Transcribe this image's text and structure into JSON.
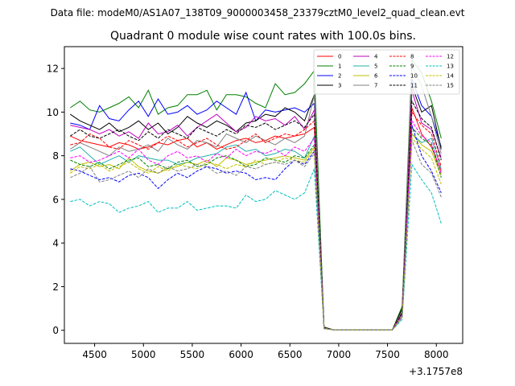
{
  "chart_data": {
    "type": "line",
    "suptitle": "Data file: modeM0/AS1A07_138T09_9000003458_23379cztM0_level2_quad_clean.evt",
    "title": "Quadrant 0 module wise count rates with 100.0s bins.",
    "xlabel": "",
    "ylabel": "",
    "offset_text": "+3.1757e8",
    "xlim": [
      4190,
      8270
    ],
    "ylim": [
      -0.6,
      13.0
    ],
    "xticks": [
      4500,
      5000,
      5500,
      6000,
      6500,
      7000,
      7500,
      8000
    ],
    "yticks": [
      0,
      2,
      4,
      6,
      8,
      10,
      12
    ],
    "grid": false,
    "legend_placement": "upper-right",
    "x": [
      4250,
      4350,
      4450,
      4550,
      4650,
      4750,
      4850,
      4950,
      5050,
      5150,
      5250,
      5350,
      5450,
      5550,
      5650,
      5750,
      5850,
      5950,
      6050,
      6150,
      6250,
      6350,
      6450,
      6550,
      6650,
      6750,
      6850,
      6950,
      7050,
      7150,
      7250,
      7350,
      7450,
      7550,
      7650,
      7750,
      7850,
      7950,
      8050
    ],
    "series": [
      {
        "name": "0",
        "color": "#ff0000",
        "dash": "solid",
        "values": [
          8.9,
          8.7,
          8.6,
          8.5,
          8.4,
          8.6,
          8.5,
          8.3,
          8.4,
          8.6,
          8.5,
          8.7,
          8.8,
          8.4,
          8.6,
          8.3,
          8.5,
          8.7,
          8.8,
          8.6,
          8.7,
          8.9,
          8.8,
          8.9,
          9.0,
          9.3,
          0.1,
          0.02,
          0.02,
          0.02,
          0.02,
          0.02,
          0.02,
          0.02,
          0.9,
          10.2,
          9.0,
          8.4,
          7.3
        ]
      },
      {
        "name": "1",
        "color": "#008000",
        "dash": "solid",
        "values": [
          10.2,
          10.5,
          10.1,
          10.0,
          10.2,
          10.4,
          10.7,
          10.2,
          11.0,
          9.9,
          10.2,
          10.3,
          10.8,
          10.8,
          11.0,
          10.1,
          10.8,
          10.8,
          10.7,
          10.4,
          10.2,
          11.3,
          10.8,
          10.9,
          11.3,
          11.9,
          0.12,
          0.02,
          0.02,
          0.02,
          0.02,
          0.02,
          0.02,
          0.02,
          1.1,
          12.4,
          11.8,
          10.5,
          8.8
        ]
      },
      {
        "name": "2",
        "color": "#0000ff",
        "dash": "solid",
        "values": [
          9.5,
          9.4,
          9.2,
          10.3,
          9.7,
          9.6,
          10.1,
          10.5,
          9.8,
          10.6,
          9.9,
          10.0,
          10.3,
          9.9,
          10.1,
          10.5,
          10.2,
          9.9,
          10.9,
          9.6,
          10.1,
          10.0,
          10.1,
          10.2,
          10.0,
          10.4,
          0.1,
          0.02,
          0.02,
          0.02,
          0.02,
          0.02,
          0.02,
          0.02,
          0.8,
          11.5,
          10.3,
          9.8,
          8.4
        ]
      },
      {
        "name": "3",
        "color": "#000000",
        "dash": "solid",
        "values": [
          9.9,
          9.6,
          9.4,
          9.2,
          9.5,
          9.1,
          9.3,
          9.6,
          9.2,
          9.5,
          9.0,
          9.3,
          9.8,
          9.5,
          9.3,
          9.6,
          9.4,
          9.1,
          9.5,
          9.6,
          9.9,
          9.8,
          10.2,
          10.0,
          9.6,
          10.8,
          0.15,
          0.02,
          0.02,
          0.02,
          0.02,
          0.02,
          0.02,
          0.02,
          1.0,
          11.2,
          10.0,
          10.3,
          8.3
        ]
      },
      {
        "name": "4",
        "color": "#bf00bf",
        "dash": "solid",
        "values": [
          9.4,
          9.3,
          9.2,
          9.0,
          9.2,
          8.9,
          9.1,
          8.8,
          9.5,
          9.0,
          9.1,
          9.4,
          8.9,
          9.3,
          9.6,
          9.9,
          9.5,
          9.1,
          9.3,
          9.8,
          9.6,
          9.7,
          9.4,
          9.8,
          9.2,
          10.1,
          0.1,
          0.02,
          0.02,
          0.02,
          0.02,
          0.02,
          0.02,
          0.02,
          0.7,
          11.0,
          9.5,
          9.2,
          7.9
        ]
      },
      {
        "name": "5",
        "color": "#20b2aa",
        "dash": "solid",
        "values": [
          8.2,
          8.4,
          8.0,
          7.6,
          7.8,
          8.0,
          7.7,
          8.0,
          7.9,
          7.8,
          7.8,
          7.6,
          7.7,
          7.9,
          8.0,
          8.1,
          8.4,
          8.5,
          8.2,
          8.3,
          8.0,
          8.1,
          8.3,
          8.2,
          7.9,
          8.9,
          0.08,
          0.02,
          0.02,
          0.02,
          0.02,
          0.02,
          0.02,
          0.02,
          0.6,
          9.0,
          8.6,
          8.8,
          7.4
        ]
      },
      {
        "name": "6",
        "color": "#bfbf00",
        "dash": "solid",
        "values": [
          7.3,
          7.6,
          7.7,
          7.5,
          7.6,
          7.4,
          7.9,
          7.5,
          7.3,
          7.2,
          7.4,
          7.5,
          7.7,
          7.6,
          7.8,
          7.5,
          7.9,
          7.8,
          7.6,
          7.7,
          7.8,
          7.9,
          8.0,
          7.9,
          7.8,
          8.4,
          0.1,
          0.02,
          0.02,
          0.02,
          0.02,
          0.02,
          0.02,
          0.02,
          0.7,
          9.0,
          8.5,
          8.2,
          7.1
        ]
      },
      {
        "name": "7",
        "color": "#808080",
        "dash": "solid",
        "values": [
          8.3,
          8.6,
          8.4,
          8.2,
          8.0,
          8.4,
          8.2,
          8.3,
          8.5,
          8.2,
          8.8,
          8.5,
          8.3,
          8.7,
          8.6,
          8.4,
          9.0,
          8.8,
          8.6,
          8.9,
          8.7,
          8.5,
          8.8,
          8.6,
          8.9,
          10.8,
          0.12,
          0.02,
          0.02,
          0.02,
          0.02,
          0.02,
          0.02,
          0.02,
          0.9,
          12.1,
          11.2,
          9.8,
          8.1
        ]
      },
      {
        "name": "8",
        "color": "#ff0000",
        "dash": "dashed",
        "values": [
          8.5,
          8.6,
          9.0,
          8.8,
          8.4,
          8.3,
          8.7,
          8.5,
          8.3,
          8.6,
          8.9,
          8.7,
          8.4,
          8.6,
          8.8,
          8.5,
          8.3,
          8.4,
          8.7,
          9.0,
          8.6,
          8.8,
          9.0,
          8.9,
          9.2,
          9.6,
          0.1,
          0.02,
          0.02,
          0.02,
          0.02,
          0.02,
          0.02,
          0.02,
          0.8,
          10.0,
          9.4,
          9.0,
          7.5
        ]
      },
      {
        "name": "9",
        "color": "#008000",
        "dash": "dashed",
        "values": [
          7.8,
          7.6,
          7.5,
          7.7,
          7.4,
          7.6,
          7.8,
          7.9,
          7.5,
          7.6,
          7.4,
          7.7,
          7.8,
          7.5,
          7.6,
          7.9,
          8.0,
          7.8,
          7.5,
          7.6,
          7.9,
          7.8,
          7.7,
          8.0,
          7.9,
          8.5,
          0.08,
          0.02,
          0.02,
          0.02,
          0.02,
          0.02,
          0.02,
          0.02,
          0.6,
          9.3,
          8.8,
          8.5,
          7.0
        ]
      },
      {
        "name": "10",
        "color": "#0000ff",
        "dash": "dashed",
        "values": [
          7.4,
          7.3,
          7.1,
          6.9,
          7.0,
          6.8,
          7.1,
          7.2,
          7.0,
          6.5,
          6.9,
          7.2,
          7.0,
          7.3,
          7.5,
          7.4,
          7.2,
          7.3,
          7.2,
          6.9,
          7.0,
          6.9,
          7.4,
          7.8,
          7.6,
          8.2,
          0.09,
          0.02,
          0.02,
          0.02,
          0.02,
          0.02,
          0.02,
          0.02,
          0.7,
          9.4,
          8.0,
          7.3,
          6.3
        ]
      },
      {
        "name": "11",
        "color": "#000000",
        "dash": "dashed",
        "values": [
          8.9,
          9.2,
          8.9,
          8.8,
          9.0,
          9.2,
          8.9,
          8.7,
          9.1,
          8.8,
          9.2,
          9.0,
          8.8,
          9.3,
          9.1,
          8.9,
          9.2,
          9.0,
          9.4,
          9.3,
          9.5,
          9.2,
          9.4,
          9.6,
          9.3,
          9.9,
          0.11,
          0.02,
          0.02,
          0.02,
          0.02,
          0.02,
          0.02,
          0.02,
          0.8,
          10.5,
          9.7,
          9.3,
          7.8
        ]
      },
      {
        "name": "12",
        "color": "#ff00ff",
        "dash": "dashed",
        "values": [
          7.9,
          8.0,
          7.7,
          7.8,
          8.0,
          8.2,
          7.9,
          8.3,
          7.8,
          7.6,
          8.0,
          8.2,
          7.9,
          8.0,
          7.7,
          8.1,
          7.9,
          8.3,
          8.0,
          8.2,
          8.1,
          8.3,
          8.0,
          8.4,
          8.2,
          8.8,
          0.09,
          0.02,
          0.02,
          0.02,
          0.02,
          0.02,
          0.02,
          0.02,
          0.7,
          9.6,
          8.9,
          8.6,
          7.2
        ]
      },
      {
        "name": "13",
        "color": "#00bfbf",
        "dash": "dashed",
        "values": [
          5.9,
          6.0,
          5.7,
          5.9,
          5.8,
          5.4,
          5.6,
          5.7,
          5.9,
          5.4,
          5.6,
          5.6,
          5.9,
          5.5,
          5.6,
          5.7,
          5.7,
          5.6,
          6.2,
          5.9,
          6.0,
          6.4,
          6.2,
          6.0,
          6.3,
          7.4,
          0.07,
          0.02,
          0.02,
          0.02,
          0.02,
          0.02,
          0.02,
          0.02,
          0.5,
          7.6,
          6.9,
          6.3,
          4.9
        ]
      },
      {
        "name": "14",
        "color": "#bfbf00",
        "dash": "dashed",
        "values": [
          7.2,
          7.5,
          7.4,
          7.6,
          7.3,
          7.5,
          7.7,
          7.4,
          7.2,
          7.5,
          7.3,
          7.6,
          7.5,
          7.4,
          7.7,
          7.6,
          7.4,
          7.6,
          7.5,
          7.8,
          7.6,
          7.7,
          7.9,
          7.8,
          7.7,
          8.3,
          0.08,
          0.02,
          0.02,
          0.02,
          0.02,
          0.02,
          0.02,
          0.02,
          0.6,
          8.8,
          8.3,
          7.9,
          6.7
        ]
      },
      {
        "name": "15",
        "color": "#808080",
        "dash": "dashed",
        "values": [
          7.0,
          7.2,
          7.5,
          6.8,
          6.9,
          7.1,
          7.3,
          7.0,
          7.4,
          7.2,
          7.5,
          7.3,
          7.4,
          7.6,
          7.5,
          7.2,
          7.3,
          7.1,
          7.5,
          7.4,
          7.6,
          7.7,
          7.6,
          7.8,
          7.5,
          8.1,
          0.08,
          0.02,
          0.02,
          0.02,
          0.02,
          0.02,
          0.02,
          0.02,
          0.6,
          8.7,
          7.6,
          7.2,
          6.1
        ]
      }
    ]
  }
}
